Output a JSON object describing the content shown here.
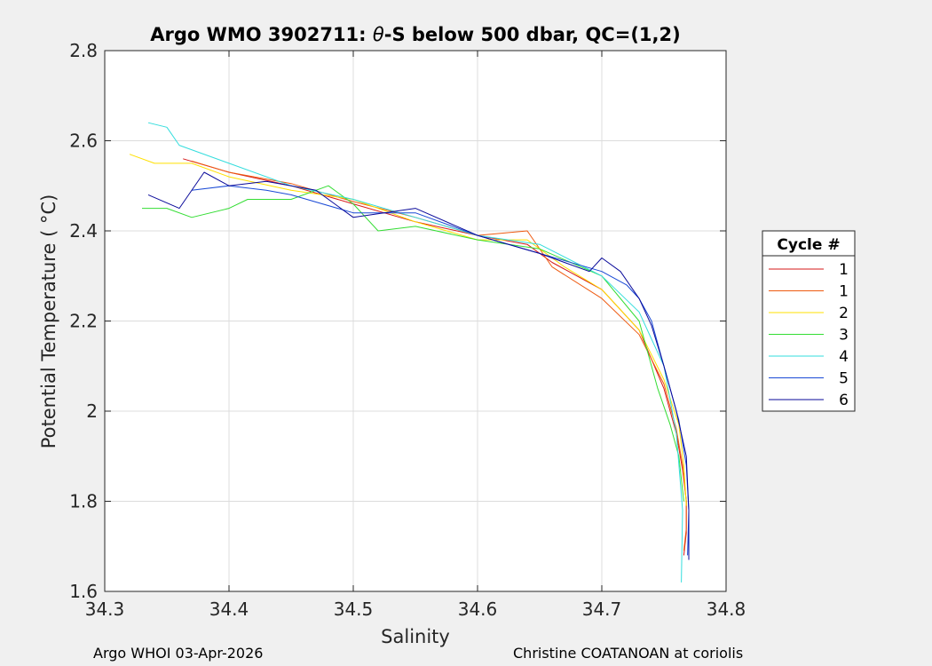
{
  "chart_data": {
    "type": "line",
    "title_prefix": "Argo WMO 3902711: ",
    "title_symbol": "θ",
    "title_suffix": "-S below 500 dbar,  QC=(1,2)",
    "xlabel": "Salinity",
    "ylabel": "Potential Temperature ( °C)",
    "xlim": [
      34.3,
      34.8
    ],
    "ylim": [
      1.6,
      2.8
    ],
    "xticks": [
      "34.3",
      "34.4",
      "34.5",
      "34.6",
      "34.7",
      "34.8"
    ],
    "yticks": [
      "1.6",
      "1.8",
      "2",
      "2.2",
      "2.4",
      "2.6",
      "2.8"
    ],
    "grid": true,
    "legend_title": "Cycle #",
    "legend_position": "outside-right",
    "series": [
      {
        "name": "1",
        "color": "#d61a1a",
        "x": [
          34.363,
          34.4,
          34.45,
          34.5,
          34.55,
          34.6,
          34.64,
          34.66,
          34.7,
          34.73,
          34.75,
          34.76,
          34.765,
          34.768,
          34.768,
          34.766
        ],
        "y": [
          2.56,
          2.53,
          2.5,
          2.46,
          2.42,
          2.39,
          2.37,
          2.33,
          2.27,
          2.18,
          2.05,
          1.95,
          1.87,
          1.8,
          1.73,
          1.68
        ]
      },
      {
        "name": "1",
        "color": "#ee5a10",
        "x": [
          34.37,
          34.4,
          34.45,
          34.5,
          34.55,
          34.6,
          34.64,
          34.66,
          34.7,
          34.73,
          34.75,
          34.76,
          34.765,
          34.768,
          34.768,
          34.766
        ],
        "y": [
          2.555,
          2.53,
          2.505,
          2.465,
          2.43,
          2.39,
          2.4,
          2.32,
          2.25,
          2.17,
          2.06,
          1.96,
          1.88,
          1.8,
          1.74,
          1.69
        ]
      },
      {
        "name": "2",
        "color": "#ffe000",
        "x": [
          34.32,
          34.34,
          34.37,
          34.4,
          34.45,
          34.5,
          34.55,
          34.6,
          34.64,
          34.67,
          34.7,
          34.73,
          34.75,
          34.762,
          34.766,
          34.768
        ],
        "y": [
          2.57,
          2.55,
          2.55,
          2.52,
          2.49,
          2.47,
          2.42,
          2.38,
          2.38,
          2.32,
          2.27,
          2.18,
          2.07,
          1.97,
          1.88,
          1.79
        ]
      },
      {
        "name": "3",
        "color": "#33dd33",
        "x": [
          34.33,
          34.35,
          34.37,
          34.4,
          34.415,
          34.45,
          34.48,
          34.5,
          34.52,
          34.55,
          34.6,
          34.65,
          34.7,
          34.73,
          34.745,
          34.755,
          34.762,
          34.766
        ],
        "y": [
          2.45,
          2.45,
          2.43,
          2.45,
          2.47,
          2.47,
          2.5,
          2.46,
          2.4,
          2.41,
          2.38,
          2.36,
          2.3,
          2.2,
          2.05,
          1.97,
          1.9,
          1.8
        ]
      },
      {
        "name": "4",
        "color": "#33dddd",
        "x": [
          34.335,
          34.35,
          34.36,
          34.4,
          34.45,
          34.5,
          34.55,
          34.6,
          34.65,
          34.7,
          34.73,
          34.75,
          34.76,
          34.765,
          34.764
        ],
        "y": [
          2.64,
          2.63,
          2.59,
          2.55,
          2.5,
          2.47,
          2.43,
          2.39,
          2.37,
          2.3,
          2.22,
          2.1,
          1.95,
          1.78,
          1.62
        ]
      },
      {
        "name": "5",
        "color": "#1a4ad6",
        "x": [
          34.37,
          34.4,
          34.43,
          34.45,
          34.5,
          34.55,
          34.6,
          34.65,
          34.7,
          34.72,
          34.73,
          34.74,
          34.752,
          34.762,
          34.768,
          34.77,
          34.769
        ],
        "y": [
          2.49,
          2.5,
          2.49,
          2.48,
          2.44,
          2.44,
          2.39,
          2.35,
          2.31,
          2.28,
          2.25,
          2.2,
          2.08,
          1.98,
          1.88,
          1.78,
          1.68
        ]
      },
      {
        "name": "6",
        "color": "#0a0a9a",
        "x": [
          34.335,
          34.36,
          34.38,
          34.4,
          34.43,
          34.47,
          34.5,
          34.55,
          34.6,
          34.65,
          34.69,
          34.7,
          34.715,
          34.73,
          34.74,
          34.75,
          34.76,
          34.768,
          34.77,
          34.77
        ],
        "y": [
          2.48,
          2.45,
          2.53,
          2.5,
          2.51,
          2.49,
          2.43,
          2.45,
          2.39,
          2.35,
          2.31,
          2.34,
          2.31,
          2.25,
          2.19,
          2.1,
          2.0,
          1.9,
          1.78,
          1.67
        ]
      }
    ]
  },
  "footer": {
    "left": "Argo WHOI 03-Apr-2026",
    "right": "Christine COATANOAN at coriolis"
  }
}
